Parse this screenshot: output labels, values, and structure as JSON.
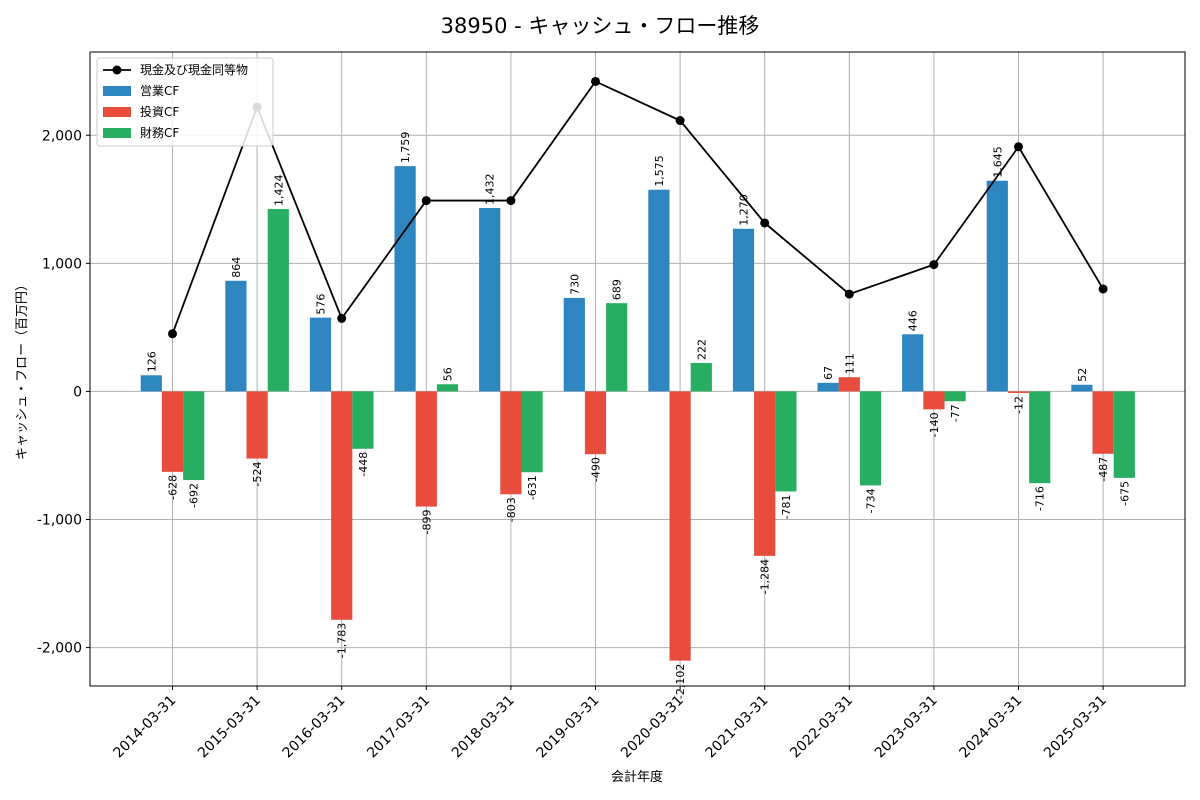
{
  "chart_data": {
    "type": "bar",
    "title": "38950 - キャッシュ・フロー推移",
    "xlabel": "会計年度",
    "ylabel": "キャッシュ・フロー（百万円）",
    "ylim": [
      -2300,
      2650
    ],
    "yticks": [
      -2000,
      -1000,
      0,
      1000,
      2000
    ],
    "ytick_labels": [
      "-2,000",
      "-1,000",
      "0",
      "1,000",
      "2,000"
    ],
    "grid": true,
    "legend_position": "top-left",
    "categories": [
      "2014-03-31",
      "2015-03-31",
      "2016-03-31",
      "2017-03-31",
      "2018-03-31",
      "2019-03-31",
      "2020-03-31",
      "2021-03-31",
      "2022-03-31",
      "2023-03-31",
      "2024-03-31",
      "2025-03-31"
    ],
    "series": [
      {
        "name": "営業CF",
        "kind": "bar",
        "color": "#2e86c1",
        "values": [
          126,
          864,
          576,
          1759,
          1432,
          730,
          1575,
          1270,
          67,
          446,
          1645,
          52
        ]
      },
      {
        "name": "投資CF",
        "kind": "bar",
        "color": "#e74c3c",
        "values": [
          -628,
          -524,
          -1783,
          -899,
          -803,
          -490,
          -2102,
          -1284,
          111,
          -140,
          -12,
          -487
        ]
      },
      {
        "name": "財務CF",
        "kind": "bar",
        "color": "#27ae60",
        "values": [
          -692,
          1424,
          -448,
          56,
          -631,
          689,
          222,
          -781,
          -734,
          -77,
          -716,
          -675
        ]
      },
      {
        "name": "現金及び現金同等物",
        "kind": "line",
        "color": "#000000",
        "values": [
          450,
          2220,
          570,
          1490,
          1490,
          2420,
          2115,
          1315,
          760,
          990,
          1910,
          800
        ]
      }
    ]
  }
}
